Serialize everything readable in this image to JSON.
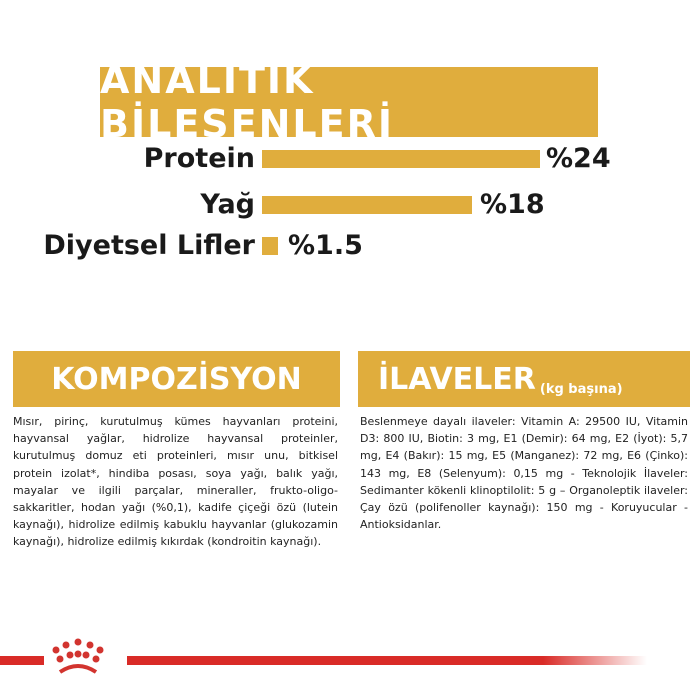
{
  "analytics": {
    "title": "ANALİTİK BİLEŞENLERİ",
    "rows": [
      {
        "label": "Protein",
        "value": "%24",
        "percent": 24
      },
      {
        "label": "Yağ",
        "value": "%18",
        "percent": 18
      },
      {
        "label": "Diyetsel Lifler",
        "value": "%1.5",
        "percent": 1.5
      }
    ]
  },
  "composition": {
    "title": "KOMPOZİSYON",
    "text": "Mısır, pirinç, kurutulmuş kümes hayvanları proteini, hayvansal yağlar, hidrolize hayvansal proteinler, kurutulmuş domuz eti proteinleri, mısır unu, bitkisel protein izolat*, hindiba posası, soya yağı, balık yağı, mayalar ve ilgili parçalar, mineraller, frukto-oligo-sakkaritler, hodan yağı (%0,1), kadife çiçeği özü (lutein kaynağı), hidrolize edilmiş kabuklu hayvanlar (glukozamin kaynağı), hidrolize edilmiş kıkırdak (kondroitin kaynağı)."
  },
  "additives": {
    "title": "İLAVELER",
    "subtitle": "(kg başına)",
    "text": "Beslenmeye dayalı ilaveler: Vitamin A: 29500 IU, Vitamin D3: 800 IU, Biotin: 3 mg, E1 (Demir): 64 mg, E2 (İyot): 5,7 mg, E4 (Bakır): 15 mg, E5 (Manganez): 72 mg, E6 (Çinko): 143 mg, E8 (Selenyum): 0,15 mg - Teknolojik İlaveler: Sedimanter kökenli klinoptilolit: 5 g – Organoleptik ilaveler: Çay özü (polifenoller kaynağı): 150 mg - Koruyucular - Antioksidanlar."
  },
  "colors": {
    "accent": "#e0ad3d",
    "brand_red": "#d92b27"
  },
  "logo": {
    "icon": "crown-icon"
  }
}
